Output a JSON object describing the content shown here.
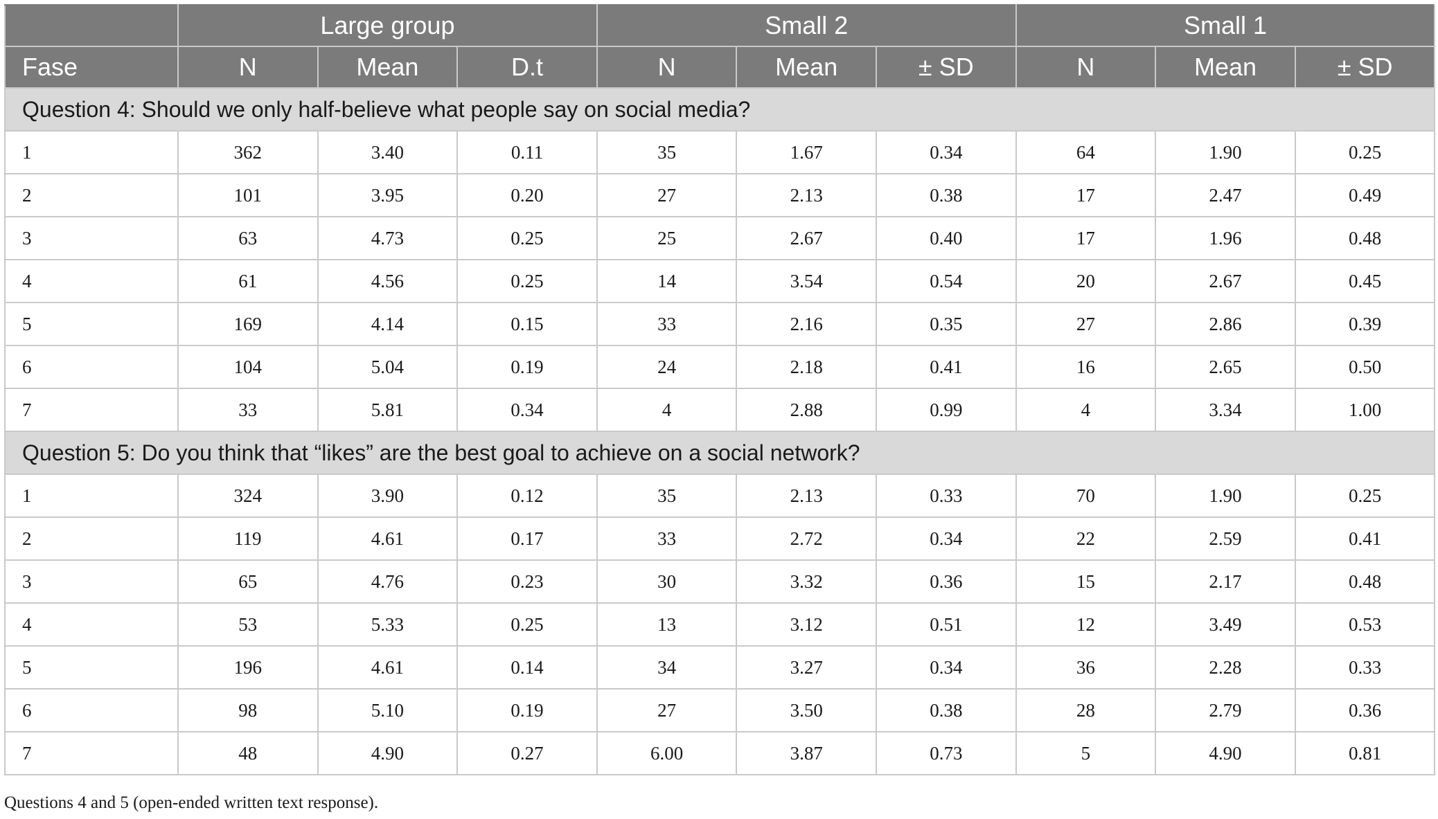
{
  "header": {
    "groups": [
      {
        "label": "Large group"
      },
      {
        "label": "Small 2"
      },
      {
        "label": "Small 1"
      }
    ],
    "columns": [
      "Fase",
      "N",
      "Mean",
      "D.t",
      "N",
      "Mean",
      "± SD",
      "N",
      "Mean",
      "± SD"
    ]
  },
  "sections": [
    {
      "title": "Question 4: Should we only half-believe what people say on social media?",
      "rows": [
        [
          "1",
          "362",
          "3.40",
          "0.11",
          "35",
          "1.67",
          "0.34",
          "64",
          "1.90",
          "0.25"
        ],
        [
          "2",
          "101",
          "3.95",
          "0.20",
          "27",
          "2.13",
          "0.38",
          "17",
          "2.47",
          "0.49"
        ],
        [
          "3",
          "63",
          "4.73",
          "0.25",
          "25",
          "2.67",
          "0.40",
          "17",
          "1.96",
          "0.48"
        ],
        [
          "4",
          "61",
          "4.56",
          "0.25",
          "14",
          "3.54",
          "0.54",
          "20",
          "2.67",
          "0.45"
        ],
        [
          "5",
          "169",
          "4.14",
          "0.15",
          "33",
          "2.16",
          "0.35",
          "27",
          "2.86",
          "0.39"
        ],
        [
          "6",
          "104",
          "5.04",
          "0.19",
          "24",
          "2.18",
          "0.41",
          "16",
          "2.65",
          "0.50"
        ],
        [
          "7",
          "33",
          "5.81",
          "0.34",
          "4",
          "2.88",
          "0.99",
          "4",
          "3.34",
          "1.00"
        ]
      ]
    },
    {
      "title": "Question 5: Do you think that “likes” are the best goal to achieve on a social network?",
      "rows": [
        [
          "1",
          "324",
          "3.90",
          "0.12",
          "35",
          "2.13",
          "0.33",
          "70",
          "1.90",
          "0.25"
        ],
        [
          "2",
          "119",
          "4.61",
          "0.17",
          "33",
          "2.72",
          "0.34",
          "22",
          "2.59",
          "0.41"
        ],
        [
          "3",
          "65",
          "4.76",
          "0.23",
          "30",
          "3.32",
          "0.36",
          "15",
          "2.17",
          "0.48"
        ],
        [
          "4",
          "53",
          "5.33",
          "0.25",
          "13",
          "3.12",
          "0.51",
          "12",
          "3.49",
          "0.53"
        ],
        [
          "5",
          "196",
          "4.61",
          "0.14",
          "34",
          "3.27",
          "0.34",
          "36",
          "2.28",
          "0.33"
        ],
        [
          "6",
          "98",
          "5.10",
          "0.19",
          "27",
          "3.50",
          "0.38",
          "28",
          "2.79",
          "0.36"
        ],
        [
          "7",
          "48",
          "4.90",
          "0.27",
          "6.00",
          "3.87",
          "0.73",
          "5",
          "4.90",
          "0.81"
        ]
      ]
    }
  ],
  "footnote": "Questions 4 and 5 (open-ended written text response).",
  "colors": {
    "header_bg": "#7b7b7b",
    "section_bg": "#d9d9d9",
    "grid_line": "#c9c9c9"
  }
}
